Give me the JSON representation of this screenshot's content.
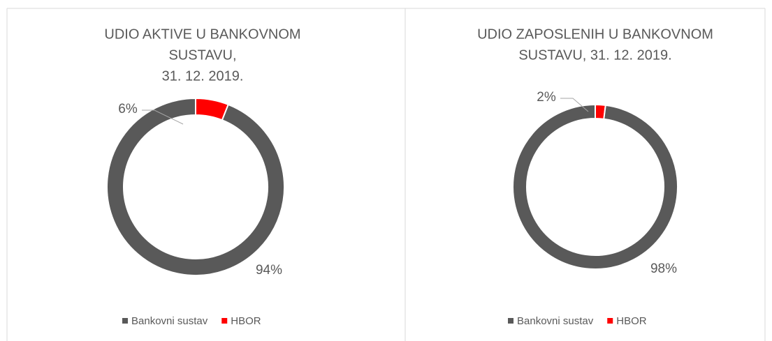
{
  "chart_data": [
    {
      "type": "doughnut",
      "title": [
        "UDIO AKTIVE U BANKOVNOM",
        "SUSTAVU,",
        "31. 12. 2019."
      ],
      "categories": [
        "Bankovni sustav",
        "HBOR"
      ],
      "values": [
        94,
        6
      ],
      "value_labels": [
        "94%",
        "6%"
      ],
      "colors": [
        "#595959",
        "#ff0000"
      ],
      "legend": "bottom"
    },
    {
      "type": "doughnut",
      "title": [
        "UDIO ZAPOSLENIH U BANKOVNOM",
        "SUSTAVU, 31. 12. 2019."
      ],
      "categories": [
        "Bankovni sustav",
        "HBOR"
      ],
      "values": [
        98,
        2
      ],
      "value_labels": [
        "98%",
        "2%"
      ],
      "colors": [
        "#595959",
        "#ff0000"
      ],
      "legend": "bottom"
    }
  ]
}
